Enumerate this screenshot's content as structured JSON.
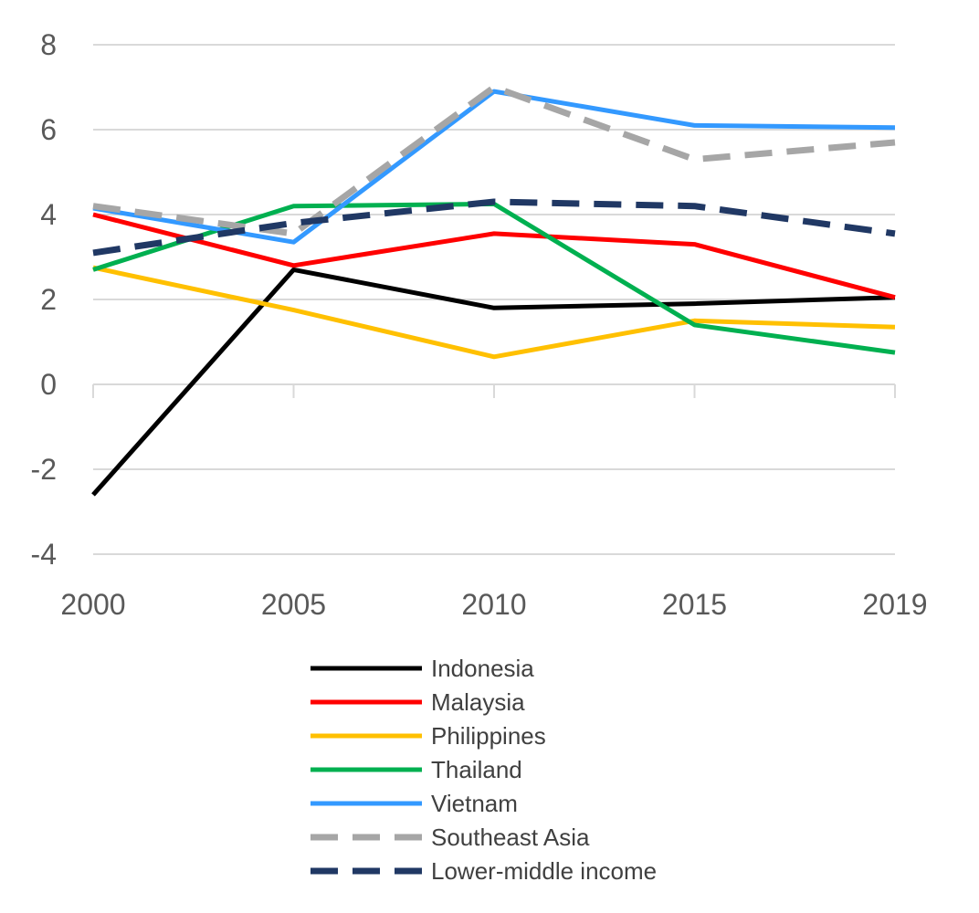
{
  "chart_data": {
    "type": "line",
    "title": "",
    "xlabel": "",
    "ylabel": "",
    "categories": [
      "2000",
      "2005",
      "2010",
      "2015",
      "2019"
    ],
    "ylim": [
      -4,
      8
    ],
    "yticks": [
      -4,
      -2,
      0,
      2,
      4,
      6,
      8
    ],
    "grid": true,
    "legend_position": "bottom",
    "series": [
      {
        "name": "Indonesia",
        "values": [
          -2.6,
          2.7,
          1.8,
          1.9,
          2.05
        ],
        "color": "#000000",
        "dashed": false
      },
      {
        "name": "Malaysia",
        "values": [
          4.0,
          2.8,
          3.55,
          3.3,
          2.05
        ],
        "color": "#ff0000",
        "dashed": false
      },
      {
        "name": "Philippines",
        "values": [
          2.75,
          1.75,
          0.65,
          1.5,
          1.35
        ],
        "color": "#ffc000",
        "dashed": false
      },
      {
        "name": "Thailand",
        "values": [
          2.7,
          4.2,
          4.25,
          1.4,
          0.75
        ],
        "color": "#00b050",
        "dashed": false
      },
      {
        "name": "Vietnam",
        "values": [
          4.15,
          3.35,
          6.9,
          6.1,
          6.05
        ],
        "color": "#3399ff",
        "dashed": false
      },
      {
        "name": "Southeast Asia",
        "values": [
          4.2,
          3.55,
          7.0,
          5.3,
          5.7
        ],
        "color": "#a6a6a6",
        "dashed": true
      },
      {
        "name": "Lower-middle income",
        "values": [
          3.1,
          3.8,
          4.3,
          4.2,
          3.55
        ],
        "color": "#203864",
        "dashed": true
      }
    ]
  }
}
